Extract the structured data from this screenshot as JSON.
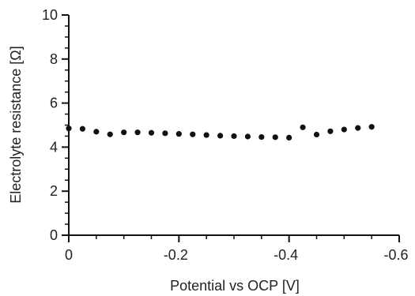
{
  "chart_data": {
    "type": "scatter",
    "title": "",
    "xlabel": "Potential vs OCP [V]",
    "ylabel": "Electrolyte resistance [Ω]",
    "xlim": [
      0,
      -0.6
    ],
    "ylim": [
      0,
      10
    ],
    "x_axis_reversed": true,
    "grid": false,
    "x_ticks": [
      0,
      -0.2,
      -0.4,
      -0.6
    ],
    "x_tick_labels": [
      "0",
      "-0.2",
      "-0.4",
      "-0.6"
    ],
    "y_ticks": [
      0,
      2,
      4,
      6,
      8,
      10
    ],
    "y_tick_labels": [
      "0",
      "2",
      "4",
      "6",
      "8",
      "10"
    ],
    "marker_color": "#111111",
    "series": [
      {
        "x": [
          0,
          -0.025,
          -0.05,
          -0.075,
          -0.1,
          -0.125,
          -0.15,
          -0.175,
          -0.2,
          -0.225,
          -0.25,
          -0.275,
          -0.3,
          -0.325,
          -0.35,
          -0.375,
          -0.4,
          -0.425,
          -0.45,
          -0.475,
          -0.5,
          -0.525,
          -0.55
        ],
        "y": [
          4.85,
          4.83,
          4.7,
          4.58,
          4.67,
          4.67,
          4.65,
          4.63,
          4.6,
          4.58,
          4.55,
          4.52,
          4.5,
          4.48,
          4.46,
          4.45,
          4.43,
          4.9,
          4.57,
          4.72,
          4.8,
          4.87,
          4.92
        ]
      }
    ]
  }
}
